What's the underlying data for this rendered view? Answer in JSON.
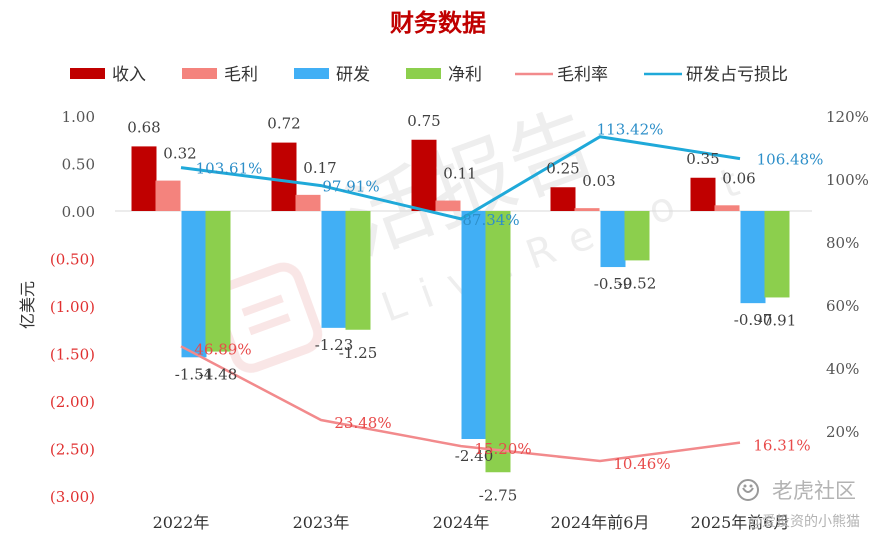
{
  "chart_data": {
    "type": "bar",
    "title": "财务数据",
    "ylabel": "亿美元",
    "categories": [
      "2022年",
      "2023年",
      "2024年",
      "2024年前6月",
      "2025年前6月"
    ],
    "ylim": [
      -3.0,
      1.0
    ],
    "y2lim": [
      0,
      120
    ],
    "y_ticks": [
      "1.00",
      "0.50",
      "0.00",
      "(0.50)",
      "(1.00)",
      "(1.50)",
      "(2.00)",
      "(2.50)",
      "(3.00)"
    ],
    "y2_ticks": [
      "120%",
      "100%",
      "80%",
      "60%",
      "40%",
      "20%"
    ],
    "legend_position": "top",
    "grid": false,
    "series": [
      {
        "name": "收入",
        "kind": "bar",
        "color": "#c00000",
        "values": [
          0.68,
          0.72,
          0.75,
          0.25,
          0.35
        ],
        "labels": [
          "0.68",
          "0.72",
          "0.75",
          "0.25",
          "0.35"
        ]
      },
      {
        "name": "毛利",
        "kind": "bar",
        "color": "#f4837d",
        "values": [
          0.32,
          0.17,
          0.11,
          0.03,
          0.06
        ],
        "labels": [
          "0.32",
          "0.17",
          "0.11",
          "0.03",
          "0.06"
        ]
      },
      {
        "name": "研发",
        "kind": "bar",
        "color": "#41aff5",
        "values": [
          -1.54,
          -1.23,
          -2.4,
          -0.59,
          -0.97
        ],
        "labels": [
          "-1.54",
          "-1.23",
          "-2.40",
          "-0.59",
          "-0.97"
        ]
      },
      {
        "name": "净利",
        "kind": "bar",
        "color": "#8ccf4d",
        "values": [
          -1.48,
          -1.25,
          -2.75,
          -0.52,
          -0.91
        ],
        "labels": [
          "-1.48",
          "-1.25",
          "-2.75",
          "-0.52",
          "-0.91"
        ]
      },
      {
        "name": "毛利率",
        "kind": "line",
        "axis": "right",
        "color": "#f28a8c",
        "values": [
          46.89,
          23.48,
          15.2,
          10.46,
          16.31
        ],
        "labels": [
          "46.89%",
          "23.48%",
          "15.20%",
          "10.46%",
          "16.31%"
        ]
      },
      {
        "name": "研发占亏损比",
        "kind": "line",
        "axis": "right",
        "color": "#1fa9d9",
        "values": [
          103.61,
          97.91,
          87.34,
          113.42,
          106.48
        ],
        "labels": [
          "103.61%",
          "97.91%",
          "87.34%",
          "113.42%",
          "106.48%"
        ]
      }
    ]
  },
  "colors": {
    "left_axis_positive": "#555555",
    "left_axis_negative": "#e03030"
  },
  "watermark": {
    "main": "活报告",
    "sub": "LiveReport"
  },
  "credits": {
    "brand": "老虎社区",
    "handle": "@爱投资的小熊猫"
  }
}
